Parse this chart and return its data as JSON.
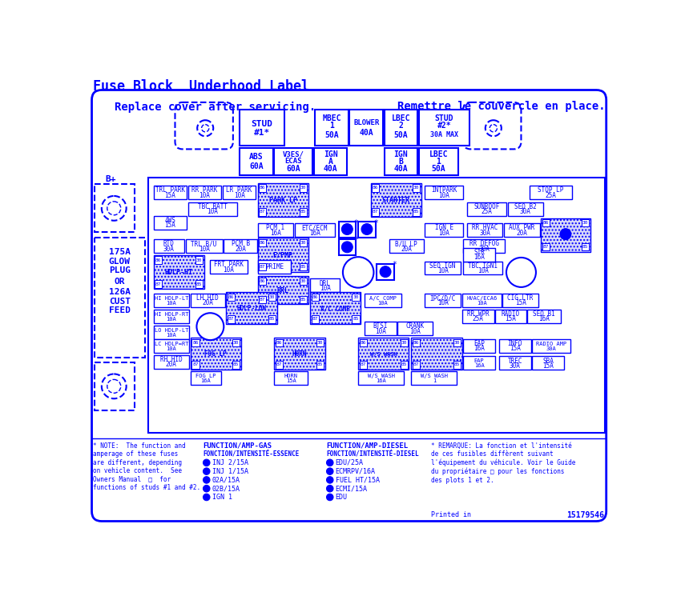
{
  "title": "Fuse Block  Underhood Label",
  "replace_cover": "Replace cover after servicing.",
  "remettre": "Remettre le couvercle en place.",
  "blue": "#0000ff",
  "white": "#ffffff",
  "note_left": "* NOTE:  The function and\namperage of these fuses\nare different, depending\non vehicle content.  See\nOwners Manual  □  for\nfunctions of studs #1 and #2.",
  "remarque": "* REMARQUE: La fonction et l'intensité\nde ces fusibles diffèrent suivant\nl'équipement du véhicule. Voir le Guide\ndu propriétaire □ pour les fonctions\ndes plots 1 et 2.",
  "printed_in": "Printed in",
  "part_num": "15179546",
  "gas_title": "FUNCTION/AMP-GAS",
  "gas_subtitle": "FONCTION/INTENSITÉ-ESSENCE",
  "gas_items": [
    "INJ 2/15A",
    "INJ 1/15A",
    "02A/15A",
    "02B/15A",
    "IGN 1"
  ],
  "diesel_title": "FUNCTION/AMP-DIESEL",
  "diesel_subtitle": "FONCTION/INTENSITÉ-DIESEL",
  "diesel_items": [
    "EDU/25A",
    "ECMRPV/16A",
    "FUEL HT/15A",
    "ECMI/15A",
    "EDU"
  ],
  "fig_w": 8.5,
  "fig_h": 7.45,
  "dpi": 100
}
